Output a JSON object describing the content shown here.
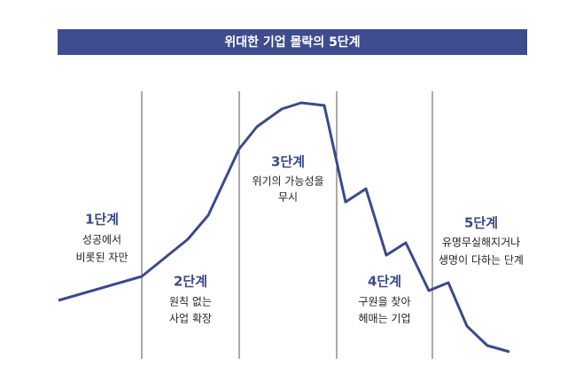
{
  "title": "위대한 기업 몰락의 5단계",
  "stages": [
    {
      "label": "1단계",
      "lines": [
        "성공에서",
        "비롯된 자만"
      ]
    },
    {
      "label": "2단계",
      "lines": [
        "원칙 없는",
        "사업 확장"
      ]
    },
    {
      "label": "3단계",
      "lines": [
        "위기의 가능성을",
        "무시"
      ]
    },
    {
      "label": "4단계",
      "lines": [
        "구원을 찾아",
        "헤매는 기업"
      ]
    },
    {
      "label": "5단계",
      "lines": [
        "유명무실해지거나",
        "생명이 다하는 단계"
      ]
    }
  ]
}
